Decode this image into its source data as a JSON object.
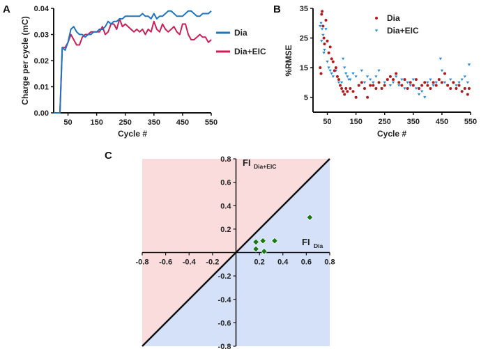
{
  "chart_data": [
    {
      "panel": "A",
      "type": "line",
      "xlabel": "Cycle #",
      "ylabel": "Charge per cycle (mC)",
      "xlim": [
        0,
        550
      ],
      "ylim": [
        0,
        0.04
      ],
      "xticks": [
        "50",
        "150",
        "250",
        "350",
        "450",
        "550"
      ],
      "yticks": [
        "0.00",
        "0.01",
        "0.02",
        "0.03",
        "0.04"
      ],
      "legend_position": "right",
      "x": [
        0,
        10,
        20,
        22,
        30,
        40,
        50,
        60,
        70,
        80,
        90,
        100,
        110,
        120,
        130,
        140,
        150,
        160,
        170,
        180,
        190,
        200,
        210,
        220,
        230,
        240,
        250,
        260,
        270,
        280,
        290,
        300,
        310,
        320,
        330,
        340,
        350,
        360,
        370,
        380,
        390,
        400,
        410,
        420,
        430,
        440,
        450,
        460,
        470,
        480,
        490,
        500,
        510,
        520,
        530,
        540,
        550
      ],
      "series": [
        {
          "name": "Dia",
          "color": "#1b75c2",
          "values": [
            0,
            0,
            0,
            0,
            0.025,
            0.024,
            0.027,
            0.032,
            0.033,
            0.031,
            0.03,
            0.03,
            0.029,
            0.03,
            0.03,
            0.031,
            0.031,
            0.032,
            0.032,
            0.033,
            0.035,
            0.034,
            0.035,
            0.035,
            0.036,
            0.036,
            0.037,
            0.037,
            0.037,
            0.037,
            0.037,
            0.037,
            0.038,
            0.037,
            0.037,
            0.036,
            0.038,
            0.036,
            0.037,
            0.037,
            0.038,
            0.039,
            0.039,
            0.038,
            0.037,
            0.037,
            0.037,
            0.038,
            0.039,
            0.039,
            0.038,
            0.037,
            0.037,
            0.038,
            0.038,
            0.038,
            0.039
          ]
        },
        {
          "name": "Dia+EIC",
          "color": "#cc1f55",
          "values": [
            0,
            0,
            0,
            0,
            0.025,
            0.025,
            0.027,
            0.03,
            0.028,
            0.026,
            0.026,
            0.029,
            0.03,
            0.03,
            0.031,
            0.031,
            0.031,
            0.031,
            0.033,
            0.03,
            0.031,
            0.034,
            0.034,
            0.032,
            0.036,
            0.033,
            0.034,
            0.033,
            0.032,
            0.031,
            0.032,
            0.031,
            0.032,
            0.03,
            0.032,
            0.031,
            0.035,
            0.032,
            0.031,
            0.034,
            0.032,
            0.031,
            0.032,
            0.033,
            0.031,
            0.03,
            0.034,
            0.034,
            0.03,
            0.028,
            0.028,
            0.029,
            0.03,
            0.029,
            0.029,
            0.027,
            0.028
          ]
        }
      ]
    },
    {
      "panel": "B",
      "type": "scatter",
      "xlabel": "Cycle #",
      "ylabel": "%RMSE",
      "xlim": [
        0,
        550
      ],
      "ylim": [
        0,
        35
      ],
      "xticks": [
        "50",
        "150",
        "250",
        "350",
        "450",
        "550"
      ],
      "yticks": [
        "5",
        "15",
        "25",
        "35"
      ],
      "legend_position": "top-right",
      "series": [
        {
          "name": "Dia",
          "color": "#b01c1c",
          "marker": "circle",
          "x": [
            25,
            28,
            30,
            32,
            35,
            38,
            40,
            45,
            50,
            55,
            60,
            65,
            70,
            75,
            80,
            85,
            90,
            95,
            100,
            105,
            110,
            115,
            120,
            130,
            140,
            150,
            160,
            170,
            180,
            190,
            200,
            210,
            220,
            230,
            240,
            250,
            260,
            270,
            280,
            290,
            300,
            310,
            320,
            330,
            340,
            350,
            360,
            370,
            380,
            390,
            400,
            410,
            420,
            430,
            440,
            450,
            460,
            470,
            480,
            490,
            500,
            510,
            520,
            530,
            540,
            545
          ],
          "y": [
            15,
            13,
            33,
            34,
            29,
            25,
            23,
            31,
            24,
            20,
            22,
            18,
            17,
            14,
            15,
            12,
            11,
            9,
            8,
            7,
            6,
            8,
            7,
            8,
            7,
            5,
            9,
            10,
            8,
            5,
            9,
            9,
            8,
            10,
            8,
            9,
            11,
            12,
            11,
            13,
            10,
            9,
            11,
            8,
            10,
            9,
            11,
            8,
            9,
            10,
            9,
            8,
            10,
            9,
            11,
            10,
            13,
            9,
            8,
            10,
            8,
            9,
            7,
            8,
            6,
            8
          ]
        },
        {
          "name": "Dia+EIC",
          "color": "#2b8ad6",
          "marker": "triangle-down",
          "x": [
            25,
            28,
            30,
            32,
            35,
            38,
            40,
            45,
            50,
            55,
            60,
            65,
            70,
            80,
            90,
            100,
            105,
            110,
            115,
            120,
            125,
            130,
            140,
            150,
            160,
            170,
            180,
            190,
            200,
            210,
            220,
            230,
            240,
            250,
            260,
            270,
            280,
            290,
            300,
            310,
            320,
            330,
            340,
            350,
            360,
            370,
            380,
            390,
            400,
            410,
            420,
            430,
            440,
            445,
            450,
            460,
            470,
            480,
            490,
            500,
            510,
            520,
            530,
            540,
            545
          ],
          "y": [
            29,
            30,
            24,
            28,
            26,
            20,
            21,
            28,
            17,
            15,
            14,
            13,
            12,
            14,
            10,
            10,
            18,
            15,
            13,
            12,
            11,
            11,
            13,
            12,
            9,
            14,
            10,
            12,
            11,
            10,
            12,
            14,
            8,
            10,
            11,
            9,
            10,
            12,
            9,
            11,
            8,
            10,
            9,
            11,
            8,
            6,
            7,
            5,
            10,
            11,
            9,
            10,
            11,
            18,
            14,
            10,
            9,
            11,
            10,
            9,
            10,
            11,
            12,
            10,
            16
          ]
        }
      ]
    },
    {
      "panel": "C",
      "type": "scatter",
      "xlabel_main": "FI",
      "xlabel_sub": "Dia",
      "ylabel_main": "FI",
      "ylabel_sub": "Dia+EIC",
      "xlim": [
        -0.8,
        0.8
      ],
      "ylim": [
        -0.8,
        0.8
      ],
      "xticks": [
        "-0.8",
        "-0.6",
        "-0.4",
        "-0.2",
        "0.2",
        "0.4",
        "0.6",
        "0.8"
      ],
      "yticks": [
        "-0.8",
        "-0.6",
        "-0.4",
        "-0.2",
        "0.2",
        "0.4",
        "0.6",
        "0.8"
      ],
      "identity_line": true,
      "region_above_color": "#fadcdc",
      "region_below_color": "#d5e1f8",
      "marker": "diamond",
      "marker_color": "#1a7a1a",
      "points": [
        [
          0.17,
          0.09
        ],
        [
          0.17,
          0.03
        ],
        [
          0.23,
          0.1
        ],
        [
          0.24,
          0.01
        ],
        [
          0.33,
          0.1
        ],
        [
          0.63,
          0.3
        ]
      ]
    }
  ]
}
